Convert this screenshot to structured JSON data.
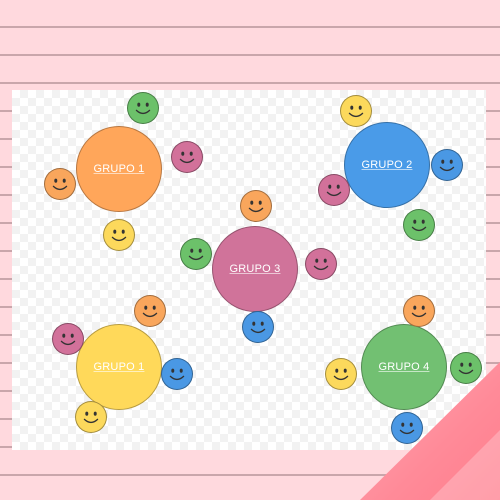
{
  "colors": {
    "orange": "#ffa65a",
    "blue": "#4a9be8",
    "pink": "#d0739a",
    "yellow": "#ffd95a",
    "green": "#72c072",
    "face_orange": "#f9a65c",
    "face_green": "#6cc16a",
    "face_pink": "#d2719a",
    "face_yellow": "#fcd95c",
    "face_blue": "#4a98e4"
  },
  "groups": [
    {
      "label": "GRUPO 1",
      "color": "orange"
    },
    {
      "label": "GRUPO 2",
      "color": "blue"
    },
    {
      "label": "GRUPO 3",
      "color": "pink"
    },
    {
      "label": "GRUPO 1",
      "color": "yellow"
    },
    {
      "label": "GRUPO 4",
      "color": "green"
    }
  ],
  "icons": {
    "face": "smiley-face-icon"
  }
}
